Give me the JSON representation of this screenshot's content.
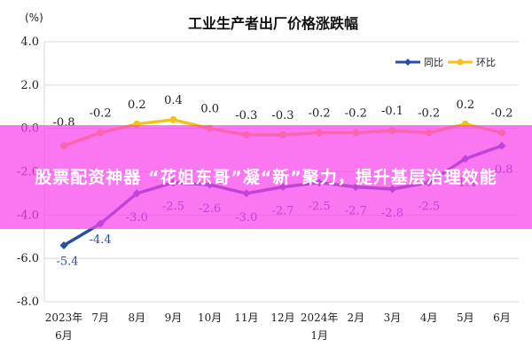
{
  "chart_data": {
    "type": "line",
    "title": "工业生产者出厂价格涨跌幅",
    "unit_label": "(%)",
    "categories": [
      "2023年\n6月",
      "7月",
      "8月",
      "9月",
      "10月",
      "11月",
      "12月",
      "2024年\n1月",
      "2月",
      "3月",
      "4月",
      "5月",
      "6月"
    ],
    "series": [
      {
        "name": "同比",
        "color": "#2b4fa0",
        "values": [
          -5.4,
          -4.4,
          -3.0,
          -2.5,
          -2.6,
          -3.0,
          -2.7,
          -2.5,
          -2.7,
          -2.8,
          -2.5,
          -1.4,
          -0.8
        ],
        "labels": [
          "-5.4",
          "-4.4",
          "-3.0",
          "-2.5",
          "-2.6",
          "-3.0",
          "-2.7",
          "-2.5",
          "-2.7",
          "-2.8",
          "-2.5",
          "-1.4",
          "-0.8"
        ]
      },
      {
        "name": "环比",
        "color": "#f2c318",
        "values": [
          -0.8,
          -0.2,
          0.2,
          0.4,
          0.0,
          -0.3,
          -0.3,
          -0.2,
          -0.2,
          -0.1,
          -0.2,
          0.2,
          -0.2
        ],
        "labels": [
          "-0.8",
          "-0.2",
          "0.2",
          "0.4",
          "0.0",
          "-0.3",
          "-0.3",
          "-0.2",
          "-0.2",
          "-0.1",
          "-0.2",
          "0.2",
          "-0.2"
        ]
      }
    ],
    "ylim": [
      -8.0,
      4.0
    ],
    "yticks": [
      "4.0",
      "2.0",
      "0.0",
      "-2.0",
      "-4.0",
      "-6.0",
      "-8.0"
    ],
    "ytick_values": [
      4,
      2,
      0,
      -2,
      -4,
      -6,
      -8
    ],
    "grid": true,
    "legend_position": "top-right"
  },
  "overlay": {
    "headline": "股票配资神器 “花姐东哥”凝“新”聚力，提升基层治理效能",
    "color": "#fa41eb"
  }
}
